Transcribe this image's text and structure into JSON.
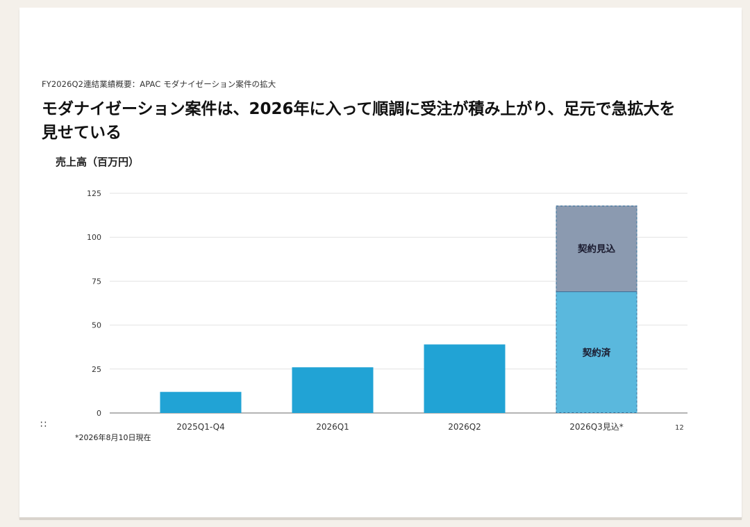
{
  "slide": {
    "subtitle": "FY2026Q2連結業績概要：APAC モダナイゼーション案件の拡大",
    "headline": "モダナイゼーション案件は、2026年に入って順調に受注が積み上がり、足元で急拡大を見せている",
    "footnote": "*2026年8月10日現在",
    "page_number": "12",
    "drag_handle_icon": "∷"
  },
  "chart_data": {
    "type": "bar",
    "ylabel": "売上高（百万円）",
    "ylim": [
      0,
      125
    ],
    "yticks": [
      0,
      25,
      50,
      75,
      100,
      125
    ],
    "categories": [
      "2025Q1-Q4",
      "2026Q1",
      "2026Q2",
      "2026Q3見込*"
    ],
    "grid": true,
    "series": [
      {
        "name": "契約済",
        "values": [
          12,
          26,
          39,
          69
        ],
        "color": "#21a3d5",
        "forecast_color": "#5ab8dd"
      },
      {
        "name": "契約見込",
        "values": [
          0,
          0,
          0,
          49
        ],
        "color": "#8b9ab0"
      }
    ],
    "segment_labels": [
      "契約済",
      "契約見込"
    ]
  }
}
